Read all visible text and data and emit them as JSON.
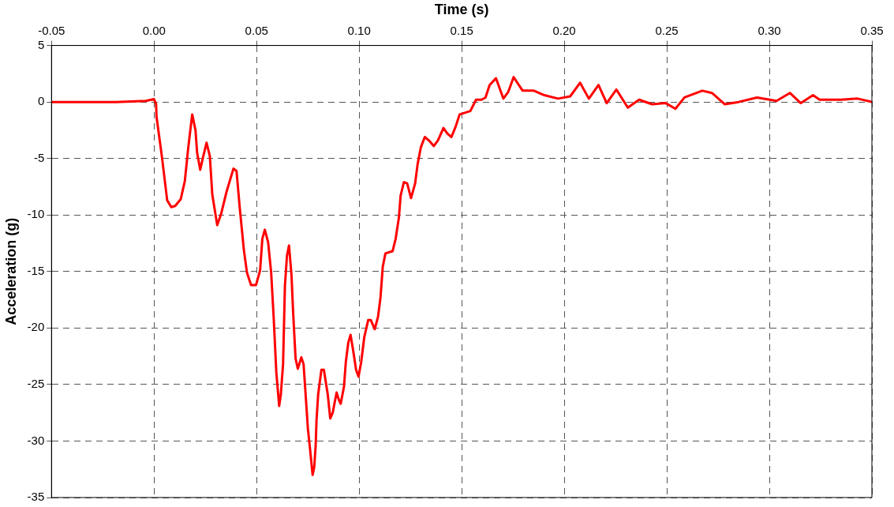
{
  "chart_data": {
    "type": "line",
    "xlabel": "Time (s)",
    "ylabel": "Acceleration (g)",
    "xlim": [
      -0.05,
      0.35
    ],
    "xticks": [
      {
        "value": -0.05,
        "label": "-0.05"
      },
      {
        "value": 0,
        "label": "0.00"
      },
      {
        "value": 0.05,
        "label": "0.05"
      },
      {
        "value": 0.1,
        "label": "0.10"
      },
      {
        "value": 0.15,
        "label": "0.15"
      },
      {
        "value": 0.2,
        "label": "0.20"
      },
      {
        "value": 0.25,
        "label": "0.25"
      },
      {
        "value": 0.3,
        "label": "0.30"
      },
      {
        "value": 0.35,
        "label": "0.35"
      }
    ],
    "ylim": [
      -35,
      5
    ],
    "yticks": [
      5,
      0,
      -5,
      -10,
      -15,
      -20,
      -25,
      -30,
      -35
    ],
    "grid": true,
    "legend": false,
    "marker": "none",
    "line_style": "solid",
    "series": [
      {
        "color": "#ff0000",
        "x": [
          -0.05,
          -0.0185,
          -0.004,
          0,
          0.001,
          0.0012,
          0.0038,
          0.0064,
          0.0084,
          0.0103,
          0.013,
          0.015,
          0.0167,
          0.0186,
          0.0202,
          0.021,
          0.0225,
          0.024,
          0.0256,
          0.0272,
          0.0284,
          0.0308,
          0.0327,
          0.0354,
          0.0387,
          0.0402,
          0.0418,
          0.0438,
          0.0453,
          0.0473,
          0.0497,
          0.0517,
          0.0528,
          0.054,
          0.0556,
          0.0571,
          0.0583,
          0.0596,
          0.061,
          0.0618,
          0.0629,
          0.0638,
          0.0648,
          0.0658,
          0.067,
          0.0678,
          0.069,
          0.0701,
          0.0718,
          0.0729,
          0.0742,
          0.075,
          0.0761,
          0.0773,
          0.0781,
          0.0788,
          0.0792,
          0.08,
          0.0816,
          0.0828,
          0.0847,
          0.0859,
          0.0871,
          0.089,
          0.0902,
          0.091,
          0.0926,
          0.0935,
          0.0947,
          0.0958,
          0.097,
          0.0985,
          0.0997,
          0.101,
          0.1025,
          0.1044,
          0.1057,
          0.1076,
          0.1092,
          0.1104,
          0.1115,
          0.1128,
          0.1163,
          0.1178,
          0.1194,
          0.1202,
          0.1218,
          0.1234,
          0.1253,
          0.1273,
          0.1285,
          0.1301,
          0.132,
          0.134,
          0.1364,
          0.1384,
          0.1411,
          0.143,
          0.145,
          0.147,
          0.149,
          0.1542,
          0.157,
          0.1597,
          0.1616,
          0.1636,
          0.1667,
          0.1703,
          0.1727,
          0.1753,
          0.1797,
          0.1852,
          0.1903,
          0.197,
          0.2029,
          0.2077,
          0.212,
          0.2167,
          0.2207,
          0.2254,
          0.231,
          0.2365,
          0.2428,
          0.2495,
          0.2542,
          0.2586,
          0.2673,
          0.272,
          0.2783,
          0.285,
          0.294,
          0.3035,
          0.31,
          0.3153,
          0.3213,
          0.3245,
          0.335,
          0.343,
          0.35
        ],
        "values": [
          0,
          0,
          0.1,
          0.25,
          -0.2,
          -1.3,
          -4.8,
          -8.7,
          -9.3,
          -9.2,
          -8.6,
          -7,
          -4,
          -1.1,
          -2.5,
          -4.5,
          -6,
          -4.8,
          -3.6,
          -4.8,
          -8.2,
          -10.9,
          -9.9,
          -7.9,
          -5.9,
          -6.1,
          -9.4,
          -13.1,
          -15.1,
          -16.2,
          -16.2,
          -14.9,
          -12.1,
          -11.3,
          -12.4,
          -15.1,
          -19,
          -23.9,
          -26.9,
          -25.9,
          -23.2,
          -16.3,
          -13.6,
          -12.7,
          -15.3,
          -18.6,
          -22.7,
          -23.6,
          -22.6,
          -23.2,
          -26.7,
          -28.9,
          -30.8,
          -33,
          -32.3,
          -30.4,
          -28.2,
          -25.9,
          -23.7,
          -23.7,
          -25.9,
          -28,
          -27.5,
          -25.7,
          -26.4,
          -26.7,
          -25.2,
          -23,
          -21.3,
          -20.6,
          -21.9,
          -23.7,
          -24.3,
          -23,
          -20.8,
          -19.3,
          -19.3,
          -20.1,
          -19,
          -17.3,
          -14.6,
          -13.4,
          -13.2,
          -12.1,
          -10.2,
          -8.3,
          -7.1,
          -7.2,
          -8.5,
          -7.2,
          -5.5,
          -4,
          -3.1,
          -3.4,
          -3.9,
          -3.4,
          -2.3,
          -2.8,
          -3.1,
          -2.2,
          -1.1,
          -0.8,
          0.2,
          0.2,
          0.4,
          1.5,
          2.1,
          0.3,
          0.9,
          2.2,
          1,
          1,
          0.6,
          0.3,
          0.5,
          1.7,
          0.3,
          1.5,
          -0.1,
          1.1,
          -0.5,
          0.2,
          -0.2,
          -0.1,
          -0.6,
          0.4,
          1,
          0.8,
          -0.2,
          0,
          0.4,
          0.1,
          0.8,
          -0.1,
          0.6,
          0.2,
          0.2,
          0.3,
          0
        ]
      }
    ]
  }
}
